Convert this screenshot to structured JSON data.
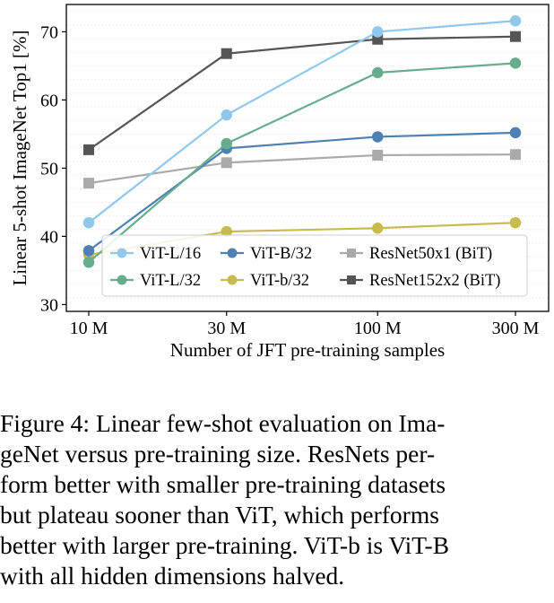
{
  "chart_data": {
    "type": "line",
    "xlabel": "Number of JFT pre-training samples",
    "ylabel": "Linear 5-shot ImageNet Top1 [%]",
    "x_scale": "log",
    "x": [
      10,
      30,
      100,
      300
    ],
    "x_tick_labels": [
      "10 M",
      "30 M",
      "100 M",
      "300 M"
    ],
    "y_ticks": [
      30,
      40,
      50,
      60,
      70
    ],
    "ylim": [
      29,
      74
    ],
    "grid": "horizontal dotted",
    "legend_position": "bottom-right",
    "series": [
      {
        "name": "ViT-L/16",
        "color": "#90c8ec",
        "marker": "circle",
        "values": [
          42.0,
          57.8,
          70.0,
          71.6
        ]
      },
      {
        "name": "ViT-L/32",
        "color": "#67ad8d",
        "marker": "circle",
        "values": [
          36.2,
          53.6,
          64.0,
          65.4
        ]
      },
      {
        "name": "ViT-B/32",
        "color": "#4e80b3",
        "marker": "circle",
        "values": [
          37.9,
          52.9,
          54.6,
          55.2
        ]
      },
      {
        "name": "ViT-b/32",
        "color": "#c7bb4e",
        "marker": "circle",
        "values": [
          37.3,
          40.7,
          41.2,
          42.0
        ]
      },
      {
        "name": "ResNet50x1 (BiT)",
        "color": "#aaaaaa",
        "marker": "square",
        "values": [
          47.8,
          50.8,
          51.9,
          52.0
        ]
      },
      {
        "name": "ResNet152x2 (BiT)",
        "color": "#555555",
        "marker": "square",
        "values": [
          52.7,
          66.8,
          68.9,
          69.3
        ]
      }
    ]
  },
  "caption": {
    "lines": [
      "Figure 4: Linear few-shot evaluation on Ima-",
      "geNet versus pre-training size.  ResNets per-",
      "form better with smaller pre-training datasets",
      "but plateau sooner than ViT, which performs",
      "better with larger pre-training. ViT-b is ViT-B",
      "with all hidden dimensions halved."
    ]
  }
}
